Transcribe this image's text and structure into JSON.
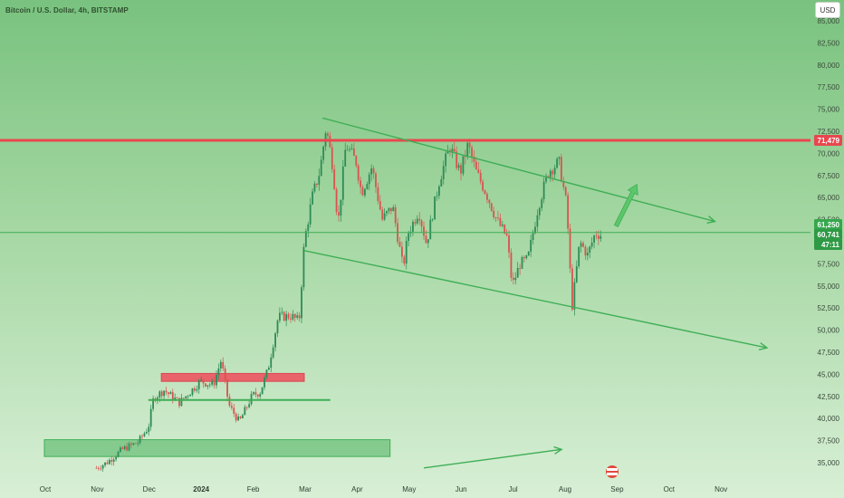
{
  "header": {
    "symbol_title": "Bitcoin / U.S. Dollar, 4h, BITSTAMP",
    "currency_button": "USD"
  },
  "price_labels": {
    "resistance": "71,479",
    "bid": "61,250",
    "last": "60,741",
    "countdown": "47:11"
  },
  "colors": {
    "background_top": "#79c27f",
    "background_bottom": "#d8efd6",
    "channel_line": "#3fae55",
    "resistance_line": "#e8474f",
    "candle_up": "#2e8b57",
    "candle_down": "#d9534f"
  },
  "chart_data": {
    "type": "candlestick",
    "title": "Bitcoin / U.S. Dollar, 4h, BITSTAMP",
    "x_ticks": [
      "Oct",
      "Nov",
      "Dec",
      "2024",
      "Feb",
      "Mar",
      "Apr",
      "May",
      "Jun",
      "Jul",
      "Aug",
      "Sep",
      "Oct",
      "Nov"
    ],
    "y_ticks": [
      "35,000",
      "37,500",
      "40,000",
      "42,500",
      "45,000",
      "47,500",
      "50,000",
      "52,500",
      "55,000",
      "57,500",
      "60,000",
      "62,500",
      "65,000",
      "67,500",
      "70,000",
      "72,500",
      "75,000",
      "77,500",
      "80,000",
      "82,500",
      "85,000"
    ],
    "ylim": [
      33800,
      86800
    ],
    "x_month_index": {
      "Oct 2023": 0,
      "Nov 2023": 1,
      "Dec 2023": 2,
      "Jan 2024": 3,
      "Feb 2024": 4,
      "Mar 2024": 5,
      "Apr 2024": 6,
      "May 2024": 7,
      "Jun 2024": 8,
      "Jul 2024": 9,
      "Aug 2024": 10,
      "Sep 2024": 11,
      "Oct 2024": 12,
      "Nov 2024": 13
    },
    "price_path": [
      [
        1.0,
        34400
      ],
      [
        1.2,
        35000
      ],
      [
        1.5,
        36500
      ],
      [
        1.8,
        37300
      ],
      [
        2.0,
        39000
      ],
      [
        2.1,
        42300
      ],
      [
        2.3,
        43200
      ],
      [
        2.6,
        41800
      ],
      [
        3.0,
        44200
      ],
      [
        3.25,
        43800
      ],
      [
        3.4,
        46600
      ],
      [
        3.55,
        41500
      ],
      [
        3.75,
        39600
      ],
      [
        4.0,
        42600
      ],
      [
        4.15,
        43000
      ],
      [
        4.3,
        45500
      ],
      [
        4.5,
        51500
      ],
      [
        4.75,
        51600
      ],
      [
        4.9,
        51000
      ],
      [
        5.0,
        60000
      ],
      [
        5.15,
        65000
      ],
      [
        5.3,
        68000
      ],
      [
        5.42,
        73000
      ],
      [
        5.55,
        68500
      ],
      [
        5.65,
        62000
      ],
      [
        5.8,
        71000
      ],
      [
        6.0,
        69000
      ],
      [
        6.1,
        65500
      ],
      [
        6.3,
        68500
      ],
      [
        6.5,
        62500
      ],
      [
        6.7,
        64000
      ],
      [
        6.9,
        57000
      ],
      [
        7.0,
        61000
      ],
      [
        7.2,
        63500
      ],
      [
        7.35,
        59800
      ],
      [
        7.6,
        67000
      ],
      [
        7.8,
        70800
      ],
      [
        8.0,
        67800
      ],
      [
        8.15,
        71000
      ],
      [
        8.3,
        68000
      ],
      [
        8.5,
        65500
      ],
      [
        8.7,
        62500
      ],
      [
        8.9,
        60500
      ],
      [
        9.0,
        55000
      ],
      [
        9.15,
        57500
      ],
      [
        9.3,
        58000
      ],
      [
        9.5,
        64000
      ],
      [
        9.7,
        68000
      ],
      [
        9.9,
        69000
      ],
      [
        10.05,
        64000
      ],
      [
        10.15,
        52500
      ],
      [
        10.3,
        60000
      ],
      [
        10.45,
        58500
      ],
      [
        10.6,
        61000
      ],
      [
        10.72,
        60741
      ]
    ],
    "annotations": {
      "resistance_level": 71479,
      "support_level": 61250,
      "channel_upper": [
        [
          5.35,
          74000
        ],
        [
          12.9,
          62300
        ]
      ],
      "channel_lower": [
        [
          5.0,
          59000
        ],
        [
          13.9,
          48000
        ]
      ],
      "horizontal_support": [
        [
          2.0,
          42100
        ],
        [
          5.5,
          42100
        ]
      ],
      "zone_red": {
        "x": [
          2.25,
          5.0
        ],
        "y": [
          44200,
          45100
        ]
      },
      "zone_green": {
        "x": [
          0.0,
          6.65
        ],
        "y": [
          35700,
          37600
        ]
      },
      "projection_arrow": [
        [
          11.0,
          61800
        ],
        [
          11.4,
          66500
        ]
      ],
      "bottom_arrow": [
        [
          7.3,
          34400
        ],
        [
          9.95,
          36500
        ]
      ]
    }
  }
}
